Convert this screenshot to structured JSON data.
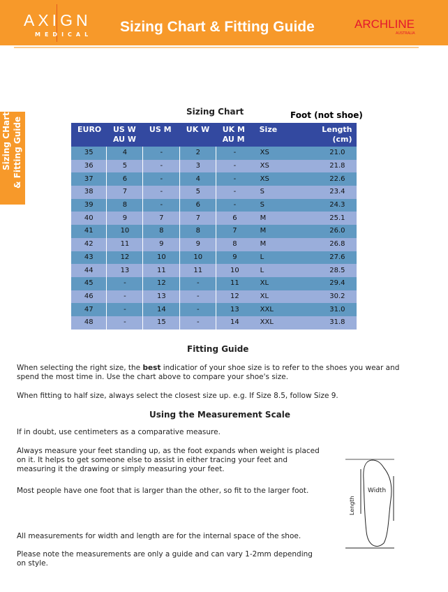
{
  "header": {
    "logo_main": "AXIGN",
    "logo_sub": "MEDICAL",
    "title": "Sizing Chart & Fitting Guide",
    "brand": "ARCHLINE",
    "brand_sub": "AUSTRALIA"
  },
  "side_tab": {
    "line1": "Sizing CHart",
    "line2": "& Fitting Guide"
  },
  "sizing_chart": {
    "title": "Sizing Chart",
    "note": "Foot (not shoe)",
    "headers": [
      [
        "EURO"
      ],
      [
        "US W",
        "AU W"
      ],
      [
        "US M"
      ],
      [
        "UK W"
      ],
      [
        "UK M",
        "AU M"
      ],
      [
        "Size"
      ],
      [
        "Length",
        "(cm)"
      ]
    ],
    "rows": [
      [
        "35",
        "4",
        "-",
        "2",
        "-",
        "XS",
        "21.0"
      ],
      [
        "36",
        "5",
        "-",
        "3",
        "-",
        "XS",
        "21.8"
      ],
      [
        "37",
        "6",
        "-",
        "4",
        "-",
        "XS",
        "22.6"
      ],
      [
        "38",
        "7",
        "-",
        "5",
        "-",
        "S",
        "23.4"
      ],
      [
        "39",
        "8",
        "-",
        "6",
        "-",
        "S",
        "24.3"
      ],
      [
        "40",
        "9",
        "7",
        "7",
        "6",
        "M",
        "25.1"
      ],
      [
        "41",
        "10",
        "8",
        "8",
        "7",
        "M",
        "26.0"
      ],
      [
        "42",
        "11",
        "9",
        "9",
        "8",
        "M",
        "26.8"
      ],
      [
        "43",
        "12",
        "10",
        "10",
        "9",
        "L",
        "27.6"
      ],
      [
        "44",
        "13",
        "11",
        "11",
        "10",
        "L",
        "28.5"
      ],
      [
        "45",
        "-",
        "12",
        "-",
        "11",
        "XL",
        "29.4"
      ],
      [
        "46",
        "-",
        "13",
        "-",
        "12",
        "XL",
        "30.2"
      ],
      [
        "47",
        "-",
        "14",
        "-",
        "13",
        "XXL",
        "31.0"
      ],
      [
        "48",
        "-",
        "15",
        "-",
        "14",
        "XXL",
        "31.8"
      ]
    ]
  },
  "fitting": {
    "title": "Fitting Guide",
    "p1_a": "When selecting the right size, the ",
    "p1_bold": "best",
    "p1_b": " indicatior of your shoe size is to refer to the shoes you wear and spend the most time in. Use the chart above to compare your shoe's size.",
    "p2": "When fitting to half size, always select the closest size up. e.g. If Size 8.5, follow Size 9."
  },
  "measure": {
    "title": "Using the Measurement Scale",
    "p1": "If in doubt, use centimeters as a comparative measure.",
    "p2": "Always measure your feet standing up, as the foot expands when weight is placed on it. It helps to get someone else to assist in either tracing your feet and measuring it the drawing or simply measuring your feet.",
    "p3": "Most people have one foot that is larger than the other, so fit to the larger foot.",
    "p4": "All measurements for width and length are for the internal space of the shoe.",
    "p5": "Please note the measurements are only a guide and can vary 1-2mm depending on style.",
    "diagram_width": "Width",
    "diagram_length": "Length"
  },
  "colors": {
    "orange": "#f7992a",
    "header_blue": "#3349a0",
    "row_teal": "#6099c2",
    "row_lavender": "#9aaedb"
  }
}
